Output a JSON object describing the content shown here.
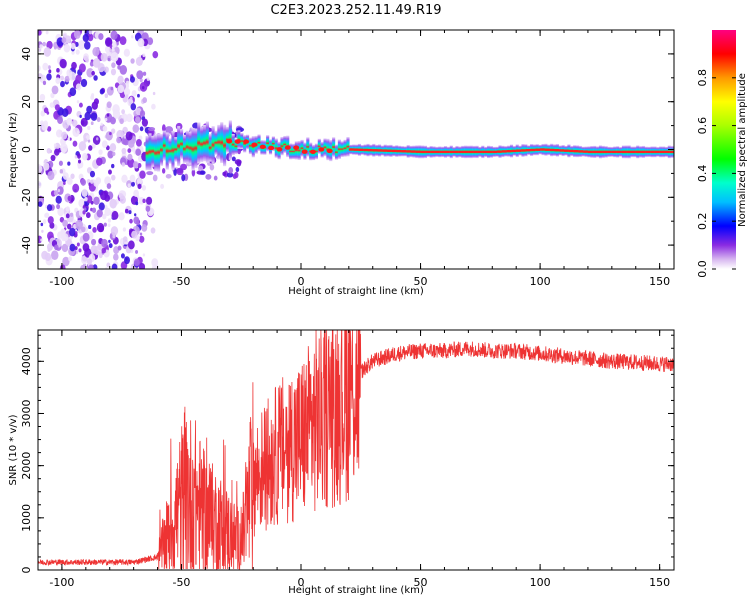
{
  "title": "C2E3.2023.252.11.49.R19",
  "chart_data": [
    {
      "type": "heatmap",
      "name": "spectrogram",
      "xlabel": "Height of straight line (km)",
      "ylabel": "Frequency (Hz)",
      "xlim": [
        -110,
        156
      ],
      "ylim": [
        -50,
        50
      ],
      "xticks": [
        -100,
        -50,
        0,
        50,
        100,
        150
      ],
      "yticks": [
        -40,
        -20,
        0,
        20,
        40
      ],
      "colorbar": {
        "label": "Normalized spectral amplitude",
        "range": [
          0,
          1
        ],
        "ticks": [
          0.0,
          0.2,
          0.4,
          0.6,
          0.8
        ]
      },
      "ridge": {
        "description_points_x": [
          -110,
          -60,
          -30,
          0,
          20,
          50,
          80,
          100,
          120,
          156
        ],
        "center_freq_hz": [
          0,
          0,
          3,
          0,
          0,
          -1,
          -1,
          0,
          -1,
          -1
        ]
      }
    },
    {
      "type": "line",
      "name": "snr",
      "xlabel": "Height of straight line (km)",
      "ylabel": "SNR (10 * v/v)",
      "xlim": [
        -110,
        156
      ],
      "ylim": [
        0,
        4600
      ],
      "xticks": [
        -100,
        -50,
        0,
        50,
        100,
        150
      ],
      "yticks": [
        0,
        1000,
        2000,
        3000,
        4000
      ],
      "color": "#ee3333",
      "envelope": {
        "x": [
          -110,
          -70,
          -60,
          -55,
          -50,
          -45,
          -40,
          -35,
          -30,
          -25,
          -20,
          -15,
          -10,
          -5,
          0,
          5,
          10,
          15,
          20,
          25,
          30,
          40,
          50,
          60,
          70,
          80,
          90,
          100,
          110,
          120,
          130,
          140,
          150,
          156
        ],
        "y": [
          150,
          150,
          250,
          700,
          1300,
          1400,
          1000,
          900,
          700,
          500,
          1700,
          2000,
          2200,
          2400,
          2500,
          2800,
          3000,
          3200,
          3500,
          3800,
          4000,
          4150,
          4200,
          4200,
          4250,
          4200,
          4200,
          4150,
          4100,
          4050,
          4000,
          3980,
          3950,
          3950
        ]
      }
    }
  ]
}
